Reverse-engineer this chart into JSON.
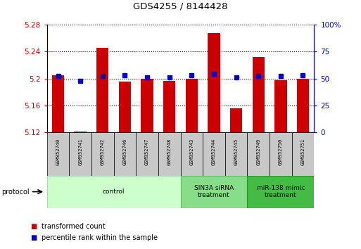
{
  "title": "GDS4255 / 8144428",
  "samples": [
    "GSM952740",
    "GSM952741",
    "GSM952742",
    "GSM952746",
    "GSM952747",
    "GSM952748",
    "GSM952743",
    "GSM952744",
    "GSM952745",
    "GSM952749",
    "GSM952750",
    "GSM952751"
  ],
  "red_values": [
    5.205,
    5.121,
    5.246,
    5.195,
    5.2,
    5.196,
    5.199,
    5.268,
    5.155,
    5.232,
    5.197,
    5.199
  ],
  "blue_values": [
    52,
    48,
    52,
    53,
    51,
    51,
    53,
    54,
    51,
    52,
    52,
    53
  ],
  "ylim_left": [
    5.12,
    5.28
  ],
  "ylim_right": [
    0,
    100
  ],
  "yticks_left": [
    5.12,
    5.16,
    5.2,
    5.24,
    5.28
  ],
  "yticks_right": [
    0,
    25,
    50,
    75,
    100
  ],
  "ytick_labels_left": [
    "5.12",
    "5.16",
    "5.2",
    "5.24",
    "5.28"
  ],
  "ytick_labels_right": [
    "0",
    "25",
    "50",
    "75",
    "100%"
  ],
  "bar_color": "#CC0000",
  "dot_color": "#0000CC",
  "bar_bottom": 5.12,
  "groups": [
    {
      "label": "control",
      "start": 0,
      "end": 6,
      "color": "#ccffcc",
      "edge": "#aaddaa"
    },
    {
      "label": "SIN3A siRNA\ntreatment",
      "start": 6,
      "end": 9,
      "color": "#88dd88",
      "edge": "#66bb66"
    },
    {
      "label": "miR-138 mimic\ntreatment",
      "start": 9,
      "end": 12,
      "color": "#44bb44",
      "edge": "#229922"
    }
  ],
  "legend_items": [
    {
      "label": "transformed count",
      "color": "#CC0000"
    },
    {
      "label": "percentile rank within the sample",
      "color": "#0000CC"
    }
  ],
  "protocol_label": "protocol",
  "bar_width": 0.55,
  "sample_box_color": "#c8c8c8",
  "tick_label_color_left": "#CC0000",
  "tick_label_color_right": "#0000CC"
}
